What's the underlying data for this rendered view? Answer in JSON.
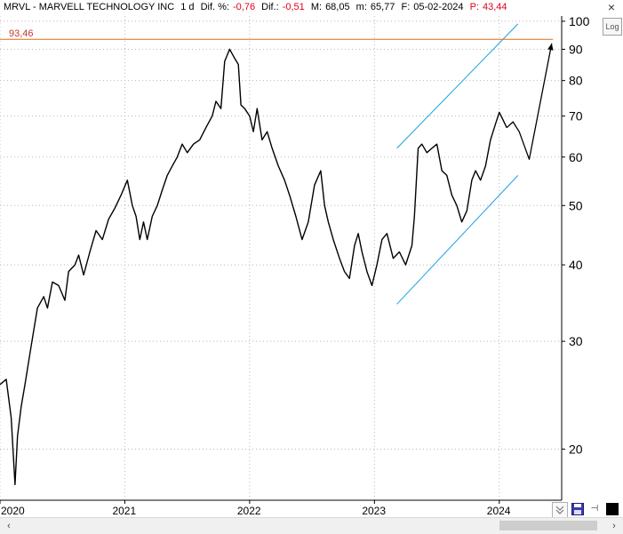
{
  "header": {
    "symbol_name": "MRVL - MARVELL TECHNOLOGY INC",
    "interval": "1 d",
    "dif_pct_label": "Dif. %:",
    "dif_pct_value": "-0,76",
    "dif_label": "Dif.:",
    "dif_value": "-0,51",
    "max_label": "M:",
    "max_value": "68,05",
    "min_label": "m:",
    "min_value": "65,77",
    "date_label": "F:",
    "date_value": "05-02-2024",
    "p_label": "P:",
    "p_value": "43,44"
  },
  "toolbar": {
    "log_label": "Log",
    "close_glyph": "×",
    "pin_glyph": "⊣"
  },
  "icons": {
    "close": "close-icon",
    "log": "log-scale-button",
    "collapse": "double-chevron-down-icon",
    "save": "floppy-disk-icon",
    "pin": "pin-icon",
    "color": "black-square-icon",
    "scroll_left": "chevron-left-icon",
    "scroll_right": "chevron-right-icon"
  },
  "scroll": {
    "left_glyph": "‹",
    "right_glyph": "›"
  },
  "colors": {
    "price": "#000000",
    "channel": "#1aa3e0",
    "resistance": "#e06a1a",
    "resistance_label": "#c0392b",
    "negative": "#e0001a"
  },
  "chart_data": {
    "type": "line",
    "title": "MRVL - MARVELL TECHNOLOGY INC",
    "yscale": "log",
    "ylim": [
      16.5,
      102
    ],
    "xlim": [
      2020.0,
      2024.5
    ],
    "y_ticks": [
      20,
      30,
      40,
      50,
      60,
      70,
      80,
      90,
      100
    ],
    "x_ticks": [
      2020,
      2021,
      2022,
      2023,
      2024
    ],
    "x_tick_labels": [
      "2020",
      "2021",
      "2022",
      "2023",
      "2024"
    ],
    "grid": true,
    "series": [
      {
        "kind": "price",
        "x": [
          2020.0,
          2020.05,
          2020.09,
          2020.12,
          2020.14,
          2020.17,
          2020.2,
          2020.25,
          2020.3,
          2020.35,
          2020.38,
          2020.42,
          2020.47,
          2020.52,
          2020.55,
          2020.6,
          2020.63,
          2020.67,
          2020.72,
          2020.77,
          2020.82,
          2020.87,
          2020.92,
          2020.97,
          2021.02,
          2021.06,
          2021.09,
          2021.12,
          2021.15,
          2021.18,
          2021.22,
          2021.26,
          2021.3,
          2021.34,
          2021.38,
          2021.42,
          2021.46,
          2021.5,
          2021.55,
          2021.6,
          2021.65,
          2021.7,
          2021.73,
          2021.77,
          2021.8,
          2021.84,
          2021.88,
          2021.91,
          2021.93,
          2021.96,
          2022.0,
          2022.03,
          2022.06,
          2022.1,
          2022.14,
          2022.18,
          2022.23,
          2022.28,
          2022.32,
          2022.37,
          2022.42,
          2022.47,
          2022.52,
          2022.57,
          2022.6,
          2022.63,
          2022.67,
          2022.72,
          2022.76,
          2022.8,
          2022.84,
          2022.87,
          2022.9,
          2022.94,
          2022.98,
          2023.02,
          2023.06,
          2023.1,
          2023.15,
          2023.2,
          2023.25,
          2023.3,
          2023.32,
          2023.35,
          2023.38,
          2023.42,
          2023.46,
          2023.5,
          2023.54,
          2023.58,
          2023.62,
          2023.66,
          2023.7,
          2023.74,
          2023.78,
          2023.81,
          2023.85,
          2023.89,
          2023.93,
          2023.97,
          2024.0,
          2024.03,
          2024.06
        ],
        "y": [
          25.5,
          26.0,
          22.5,
          17.5,
          21.0,
          23.5,
          25.5,
          29.5,
          34.0,
          35.5,
          34.0,
          37.5,
          37.0,
          35.0,
          39.0,
          40.0,
          41.5,
          38.5,
          42.0,
          45.5,
          44.0,
          47.5,
          49.5,
          52.0,
          55.0,
          50.0,
          48.0,
          44.0,
          47.0,
          44.0,
          48.0,
          50.0,
          53.0,
          56.0,
          58.0,
          60.0,
          63.0,
          61.0,
          63.0,
          64.0,
          67.0,
          70.0,
          74.0,
          72.0,
          86.0,
          90.0,
          87.0,
          85.0,
          73.0,
          72.0,
          70.0,
          66.0,
          72.0,
          64.0,
          66.0,
          62.0,
          58.0,
          55.0,
          52.0,
          48.0,
          44.0,
          47.0,
          54.0,
          57.0,
          50.0,
          47.0,
          44.0,
          41.0,
          39.0,
          38.0,
          43.0,
          45.0,
          42.0,
          39.0,
          37.0,
          40.0,
          44.0,
          45.0,
          41.0,
          42.0,
          40.0,
          43.0,
          48.0,
          62.0,
          63.0,
          61.0,
          62.0,
          63.0,
          57.0,
          56.0,
          52.0,
          50.0,
          47.0,
          49.0,
          55.0,
          57.0,
          55.0,
          58.0,
          64.0,
          68.0,
          71.0,
          69.0,
          67.0
        ]
      },
      {
        "kind": "projection",
        "x": [
          2024.06,
          2024.11,
          2024.16,
          2024.24,
          2024.42
        ],
        "y": [
          67.0,
          68.5,
          66.0,
          59.5,
          92.0
        ]
      },
      {
        "kind": "channel_upper",
        "x": [
          2023.18,
          2024.15
        ],
        "y": [
          62.0,
          99.0
        ]
      },
      {
        "kind": "channel_lower",
        "x": [
          2023.18,
          2024.15
        ],
        "y": [
          34.5,
          56.0
        ]
      },
      {
        "kind": "resistance",
        "x": [
          2020.0,
          2024.43
        ],
        "y": [
          93.46,
          93.46
        ]
      }
    ],
    "annotations": [
      {
        "text": "93,46",
        "y": 93.46
      }
    ]
  }
}
